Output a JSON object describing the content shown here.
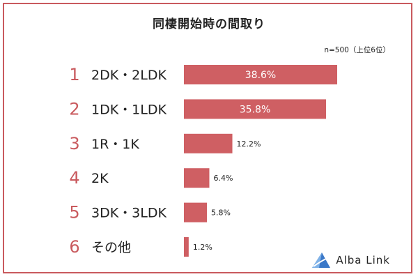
{
  "chart_data": {
    "type": "bar",
    "orientation": "horizontal",
    "title": "同棲開始時の間取り",
    "note": "n=500（上位6位）",
    "ranks": [
      "1",
      "2",
      "3",
      "4",
      "5",
      "6"
    ],
    "categories": [
      "2DK・2LDK",
      "1DK・1LDK",
      "1R・1K",
      "2K",
      "3DK・3LDK",
      "その他"
    ],
    "values": [
      38.6,
      35.8,
      12.2,
      6.4,
      5.8,
      1.2
    ],
    "value_labels": [
      "38.6%",
      "35.8%",
      "12.2%",
      "6.4%",
      "5.8%",
      "1.2%"
    ],
    "unit": "%",
    "grid": false,
    "legend": "none",
    "bar_color": "#cf5f63",
    "rank_color": "#c95a5e",
    "border_color": "#c95a5e"
  },
  "logo": {
    "text": "Alba Link",
    "icon": "alba-link-logo-icon",
    "color": "#3a78c8"
  }
}
